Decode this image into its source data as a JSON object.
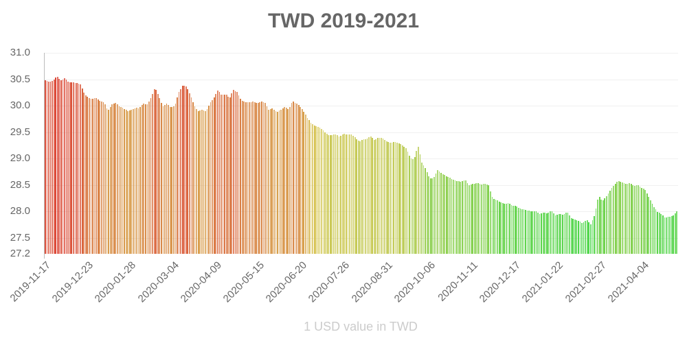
{
  "chart_data": {
    "type": "bar",
    "title": "TWD 2019-2021",
    "xlabel": "1 USD value in TWD",
    "ylabel": "",
    "ylim": [
      27.2,
      31.0
    ],
    "yticks": [
      31.0,
      30.5,
      30.0,
      29.5,
      29.0,
      28.5,
      28.0,
      27.5,
      27.2
    ],
    "x_tick_labels": [
      "2019-11-17",
      "2019-12-23",
      "2020-01-28",
      "2020-03-04",
      "2020-04-09",
      "2020-05-15",
      "2020-06-20",
      "2020-07-26",
      "2020-08-31",
      "2020-10-06",
      "2020-11-11",
      "2020-12-17",
      "2021-01-22",
      "2021-02-27",
      "2021-04-04"
    ],
    "grid": true,
    "legend": "none",
    "color_scale": {
      "high": "#d9372a",
      "mid": "#d4c44a",
      "low": "#3ed43e"
    },
    "x_start": "2019-11-17",
    "day_step": 3,
    "values": [
      30.48,
      30.45,
      30.47,
      30.56,
      30.48,
      30.52,
      30.45,
      30.44,
      30.43,
      30.4,
      30.22,
      30.15,
      30.13,
      30.15,
      30.08,
      30.07,
      29.9,
      30.03,
      30.05,
      29.98,
      29.95,
      29.9,
      29.93,
      29.96,
      29.95,
      30.05,
      30.02,
      30.15,
      30.35,
      30.17,
      29.98,
      30.04,
      29.97,
      30.0,
      30.25,
      30.38,
      30.36,
      30.2,
      30.0,
      29.9,
      29.92,
      29.9,
      30.05,
      30.15,
      30.3,
      30.2,
      30.22,
      30.15,
      30.3,
      30.25,
      30.1,
      30.07,
      30.06,
      30.08,
      30.05,
      30.08,
      30.06,
      29.92,
      29.95,
      29.88,
      29.92,
      29.98,
      29.93,
      30.08,
      30.05,
      29.98,
      29.88,
      29.75,
      29.65,
      29.62,
      29.58,
      29.52,
      29.45,
      29.44,
      29.46,
      29.42,
      29.47,
      29.45,
      29.46,
      29.4,
      29.32,
      29.36,
      29.38,
      29.42,
      29.35,
      29.4,
      29.38,
      29.33,
      29.3,
      29.32,
      29.3,
      29.25,
      29.2,
      29.02,
      28.98,
      29.25,
      28.92,
      28.8,
      28.62,
      28.64,
      28.78,
      28.72,
      28.68,
      28.64,
      28.6,
      28.58,
      28.56,
      28.6,
      28.5,
      28.52,
      28.54,
      28.51,
      28.52,
      28.5,
      28.25,
      28.22,
      28.18,
      28.14,
      28.16,
      28.12,
      28.1,
      28.06,
      28.04,
      28.02,
      28.0,
      28.01,
      27.95,
      27.98,
      27.96,
      28.02,
      27.93,
      27.96,
      27.94,
      28.0,
      27.88,
      27.85,
      27.82,
      27.78,
      27.84,
      27.76,
      27.92,
      28.3,
      28.2,
      28.28,
      28.4,
      28.5,
      28.58,
      28.55,
      28.52,
      28.54,
      28.48,
      28.5,
      28.45,
      28.4,
      28.25,
      28.1,
      28.0,
      27.95,
      27.88,
      27.9,
      27.92,
      28.0
    ]
  }
}
